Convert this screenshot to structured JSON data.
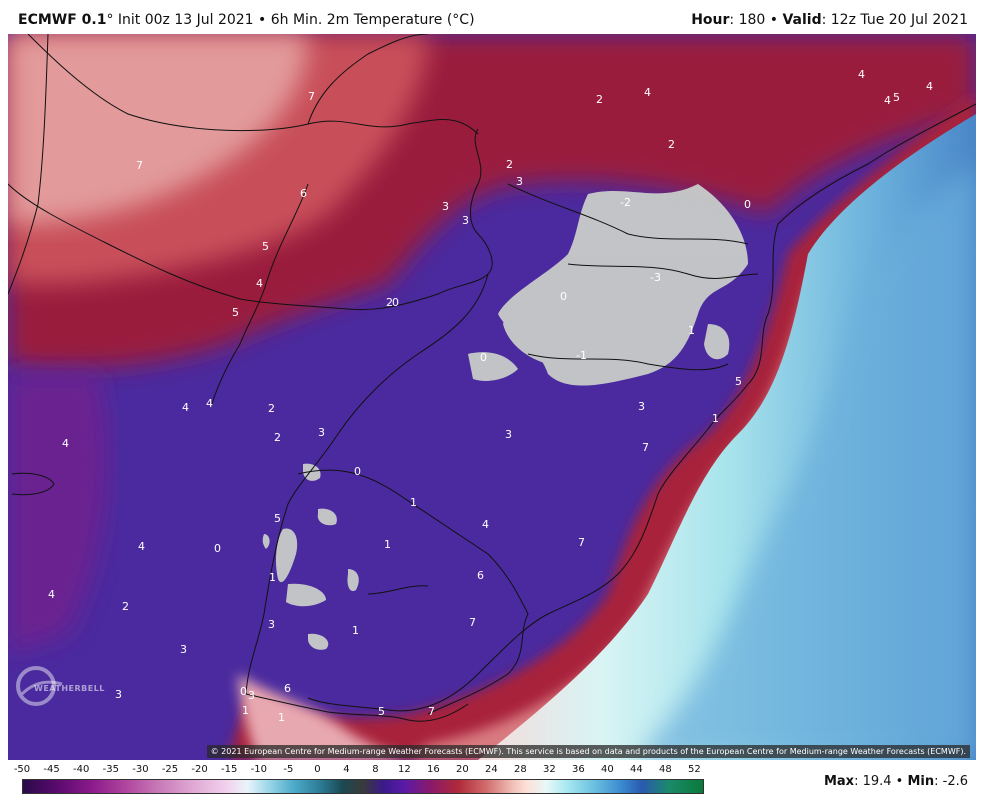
{
  "header": {
    "model": "ECMWF 0.1",
    "degree": "°",
    "init_text": "Init 00z 13 Jul 2021 • 6h Min. 2m Temperature (°C)",
    "hour_label": "Hour",
    "hour_value": ": 180 • ",
    "valid_label": "Valid",
    "valid_value": ": 12z Tue 20 Jul 2021"
  },
  "copyright": "© 2021 European Centre for Medium-range Weather Forecasts (ECMWF). This service is based on data and products of the European Centre for Medium-range Weather Forecasts (ECMWF).",
  "logo": {
    "name": "weatherbell-logo",
    "text": "WEATHERBELL"
  },
  "legend": {
    "ticks": [
      "-50",
      "-45",
      "-40",
      "-35",
      "-30",
      "-25",
      "-20",
      "-15",
      "-10",
      "-5",
      "0",
      "4",
      "8",
      "12",
      "16",
      "20",
      "24",
      "28",
      "32",
      "36",
      "40",
      "44",
      "48",
      "52"
    ]
  },
  "stats": {
    "max_label": "Max",
    "max_value": ": 19.4 • ",
    "min_label": "Min",
    "min_value": ": -2.6"
  },
  "colors": {
    "cold_purple": "#4a2a9e",
    "warm_red": "#a8243a",
    "hot_pink": "#e89a9a",
    "sub_zero_gray": "#c8ccca",
    "ocean_light": "#a8e4ec",
    "ocean_blue": "#5a9ad4"
  },
  "map_labels": [
    {
      "text": "7"
    },
    {
      "text": "7"
    },
    {
      "text": "6"
    },
    {
      "text": "5"
    },
    {
      "text": "4"
    },
    {
      "text": "5"
    },
    {
      "text": "4"
    },
    {
      "text": "2"
    },
    {
      "text": "4"
    },
    {
      "text": "4"
    },
    {
      "text": "5"
    },
    {
      "text": "4"
    },
    {
      "text": "2"
    },
    {
      "text": "3"
    },
    {
      "text": "2"
    },
    {
      "text": "3"
    },
    {
      "text": "3"
    },
    {
      "text": "2"
    },
    {
      "text": "-2"
    },
    {
      "text": "0"
    },
    {
      "text": "-3"
    },
    {
      "text": "0"
    },
    {
      "text": "0"
    },
    {
      "text": "1"
    },
    {
      "text": "-1"
    },
    {
      "text": "0"
    },
    {
      "text": "5"
    },
    {
      "text": "3"
    },
    {
      "text": "3"
    },
    {
      "text": "7"
    },
    {
      "text": "1"
    },
    {
      "text": "4"
    },
    {
      "text": "2"
    },
    {
      "text": "2"
    },
    {
      "text": "3"
    },
    {
      "text": "4"
    },
    {
      "text": "4"
    },
    {
      "text": "0"
    },
    {
      "text": "5"
    },
    {
      "text": "1"
    },
    {
      "text": "4"
    },
    {
      "text": "1"
    },
    {
      "text": "7"
    },
    {
      "text": "1"
    },
    {
      "text": "6"
    },
    {
      "text": "4"
    },
    {
      "text": "2"
    },
    {
      "text": "0"
    },
    {
      "text": "3"
    },
    {
      "text": "1"
    },
    {
      "text": "7"
    },
    {
      "text": "3"
    },
    {
      "text": "3"
    },
    {
      "text": "0"
    },
    {
      "text": "3"
    },
    {
      "text": "1"
    },
    {
      "text": "6"
    },
    {
      "text": "1"
    },
    {
      "text": "4"
    },
    {
      "text": "5"
    },
    {
      "text": "7"
    }
  ]
}
